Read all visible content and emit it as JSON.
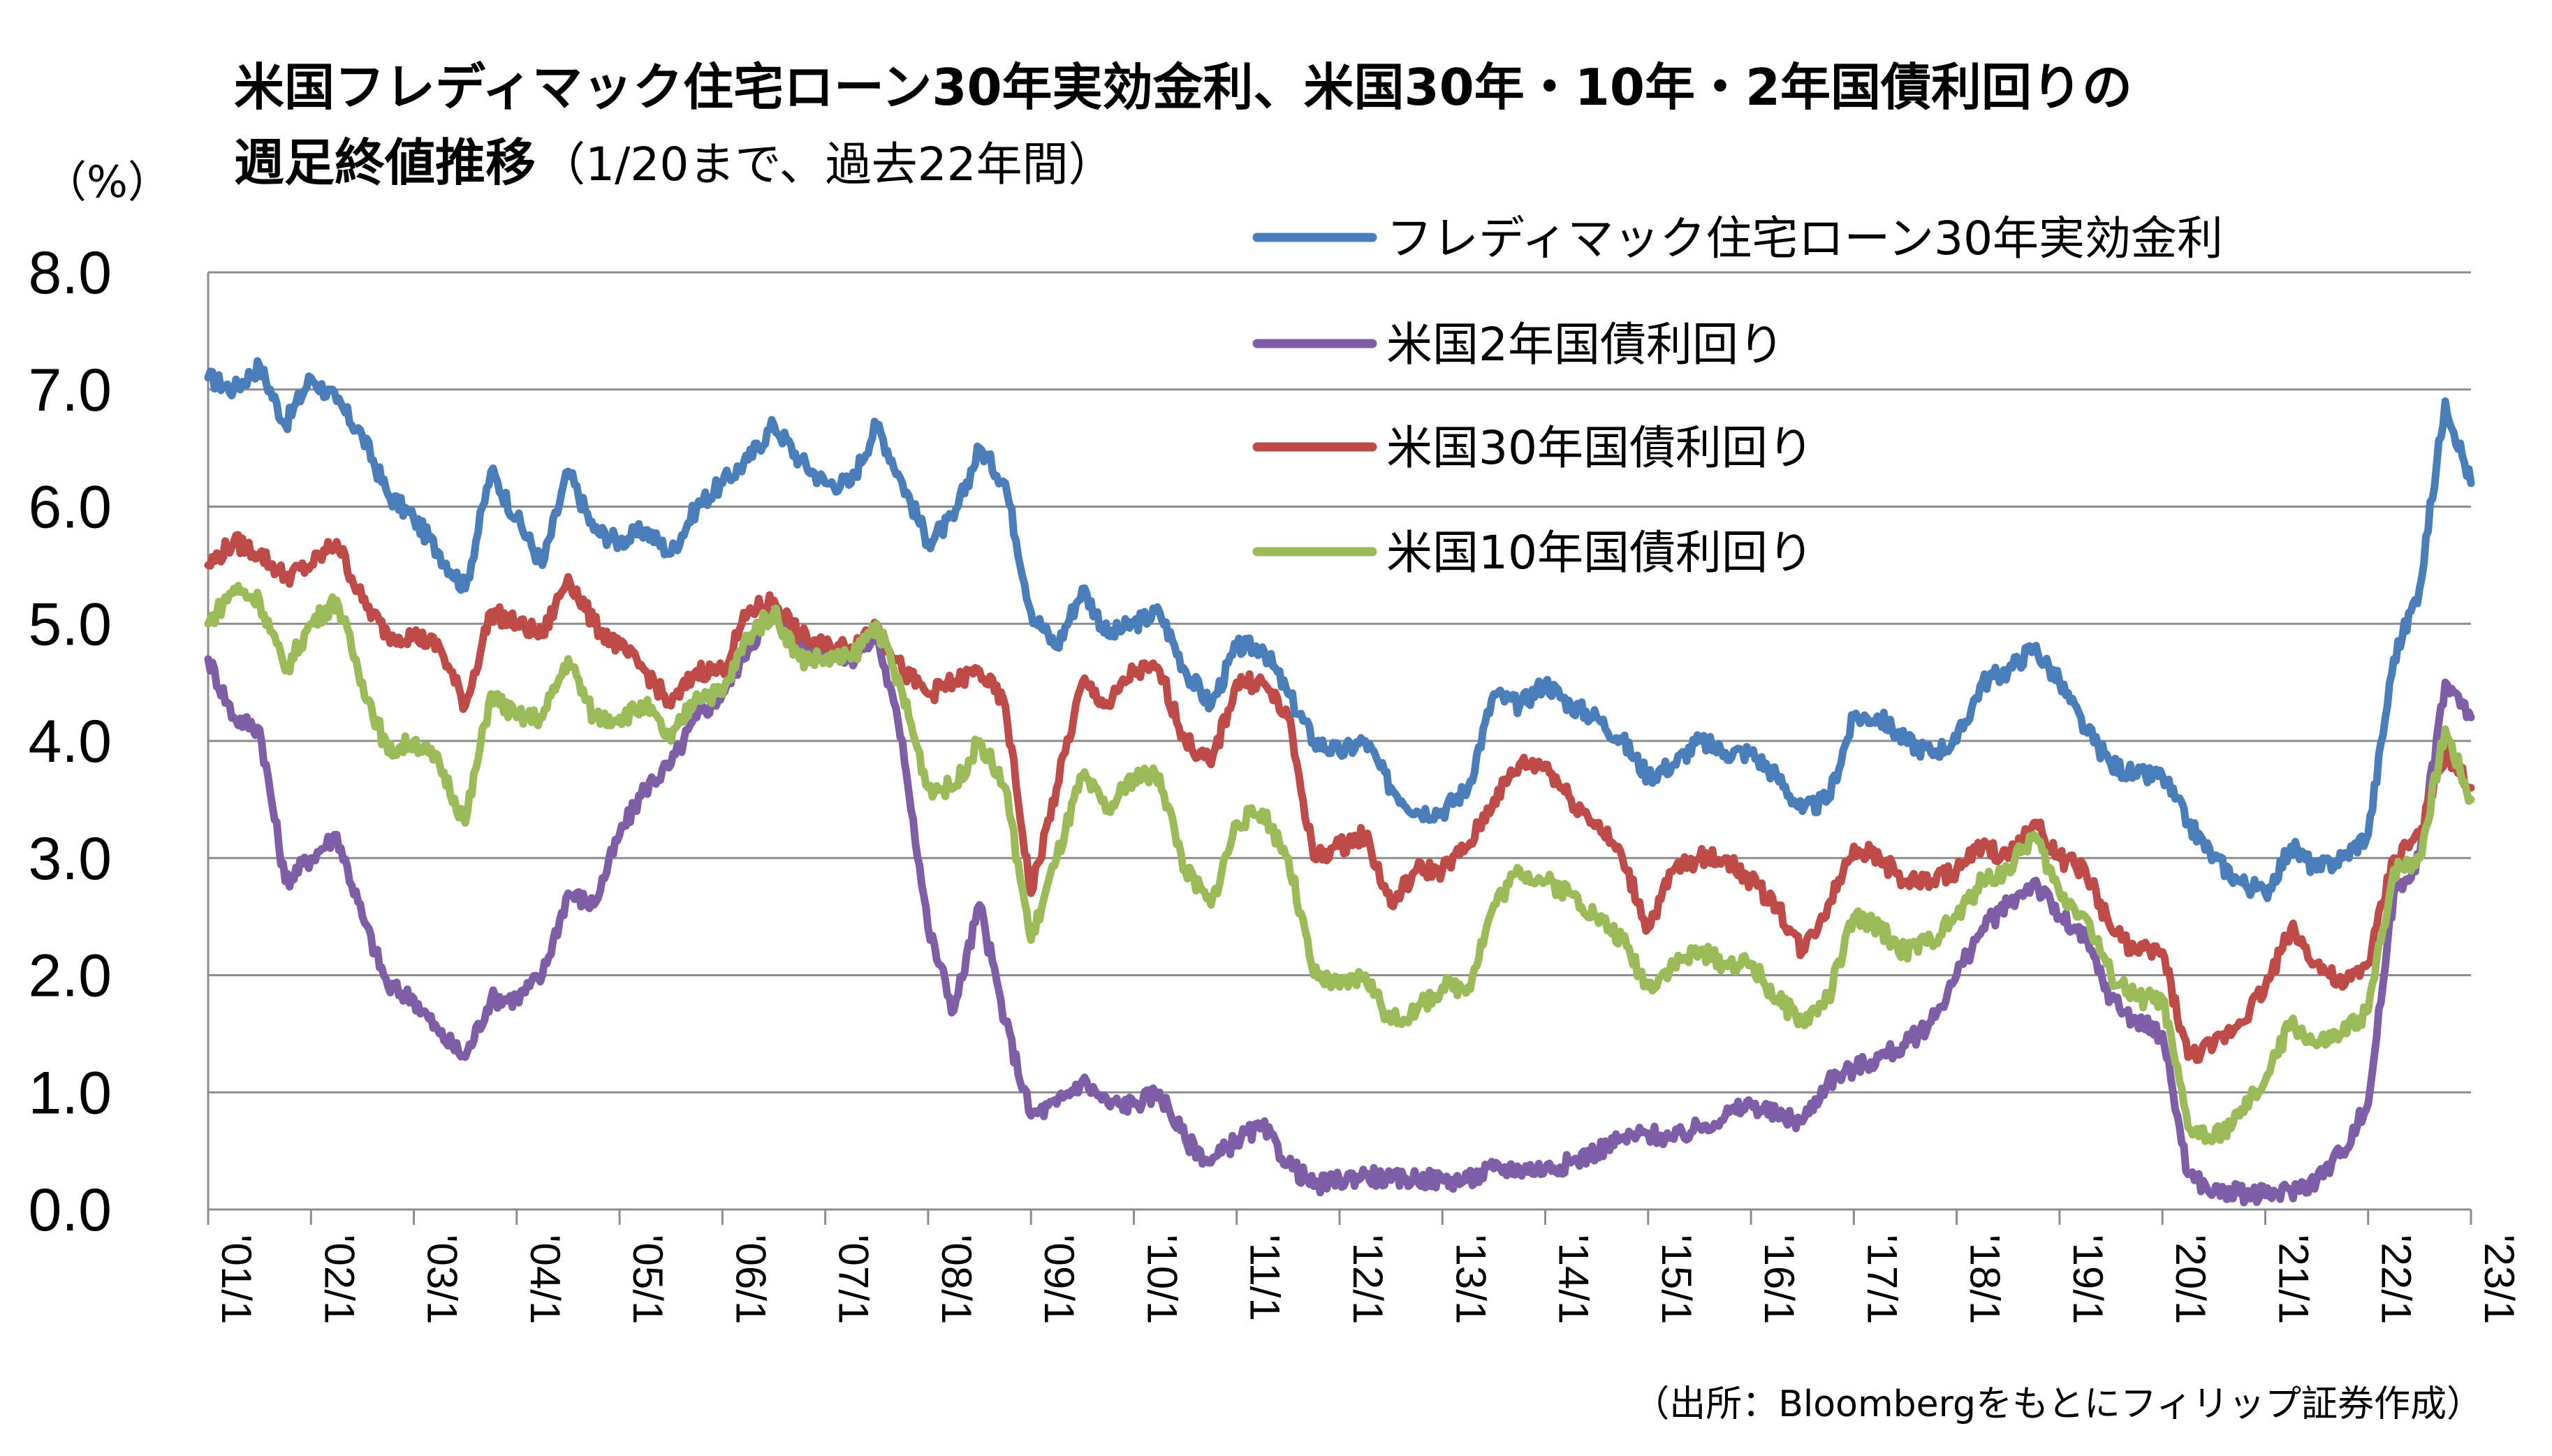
{
  "chart_data": {
    "type": "line",
    "title_line1": "米国フレディマック住宅ローン30年実効金利、米国30年・10年・2年国債利回りの",
    "title_line2_bold": "週足終値推移",
    "title_line2_normal": "（1/20まで、過去22年間）",
    "y_unit": "（%）",
    "ylim": [
      0,
      8
    ],
    "y_ticks": [
      "0.0",
      "1.0",
      "2.0",
      "3.0",
      "4.0",
      "5.0",
      "6.0",
      "7.0",
      "8.0"
    ],
    "x_ticks": [
      "'01/1",
      "'02/1",
      "'03/1",
      "'04/1",
      "'05/1",
      "'06/1",
      "'07/1",
      "'08/1",
      "'09/1",
      "'10/1",
      "'11/1",
      "'12/1",
      "'13/1",
      "'14/1",
      "'15/1",
      "'16/1",
      "'17/1",
      "'18/1",
      "'19/1",
      "'20/1",
      "'21/1",
      "'22/1",
      "'23/1"
    ],
    "x_range": [
      "2001-01",
      "2023-01"
    ],
    "grid": true,
    "legend_position": "top-right",
    "source": "（出所：Bloombergをもとにフィリップ証券作成）",
    "x": [
      2001.0,
      2001.25,
      2001.5,
      2001.75,
      2002.0,
      2002.25,
      2002.5,
      2002.75,
      2003.0,
      2003.25,
      2003.5,
      2003.75,
      2004.0,
      2004.25,
      2004.5,
      2004.75,
      2005.0,
      2005.25,
      2005.5,
      2005.75,
      2006.0,
      2006.25,
      2006.5,
      2006.75,
      2007.0,
      2007.25,
      2007.5,
      2007.75,
      2008.0,
      2008.25,
      2008.5,
      2008.75,
      2009.0,
      2009.25,
      2009.5,
      2009.75,
      2010.0,
      2010.25,
      2010.5,
      2010.75,
      2011.0,
      2011.25,
      2011.5,
      2011.75,
      2012.0,
      2012.25,
      2012.5,
      2012.75,
      2013.0,
      2013.25,
      2013.5,
      2013.75,
      2014.0,
      2014.25,
      2014.5,
      2014.75,
      2015.0,
      2015.25,
      2015.5,
      2015.75,
      2016.0,
      2016.25,
      2016.5,
      2016.75,
      2017.0,
      2017.25,
      2017.5,
      2017.75,
      2018.0,
      2018.25,
      2018.5,
      2018.75,
      2019.0,
      2019.25,
      2019.5,
      2019.75,
      2020.0,
      2020.25,
      2020.5,
      2020.75,
      2021.0,
      2021.25,
      2021.5,
      2021.75,
      2022.0,
      2022.25,
      2022.5,
      2022.75,
      2023.0
    ],
    "series": [
      {
        "name": "フレディマック住宅ローン30年実効金利",
        "color": "#4a7ebb",
        "values": [
          7.1,
          7.0,
          7.2,
          6.7,
          7.1,
          6.9,
          6.6,
          6.1,
          5.9,
          5.6,
          5.3,
          6.3,
          5.9,
          5.5,
          6.3,
          5.8,
          5.7,
          5.8,
          5.6,
          6.0,
          6.2,
          6.4,
          6.7,
          6.4,
          6.2,
          6.2,
          6.7,
          6.2,
          5.7,
          5.9,
          6.5,
          6.2,
          5.1,
          4.8,
          5.3,
          4.9,
          5.0,
          5.1,
          4.6,
          4.3,
          4.8,
          4.8,
          4.4,
          4.0,
          3.9,
          4.0,
          3.6,
          3.4,
          3.4,
          3.6,
          4.4,
          4.3,
          4.5,
          4.3,
          4.2,
          4.0,
          3.7,
          3.8,
          4.0,
          3.9,
          3.9,
          3.7,
          3.4,
          3.5,
          4.2,
          4.2,
          4.0,
          3.9,
          4.0,
          4.5,
          4.6,
          4.8,
          4.5,
          4.1,
          3.8,
          3.7,
          3.7,
          3.3,
          3.0,
          2.8,
          2.7,
          3.1,
          2.9,
          3.0,
          3.2,
          4.7,
          5.3,
          6.9,
          6.2
        ]
      },
      {
        "name": "米国2年国債利回り",
        "color": "#7f5ea8",
        "values": [
          4.7,
          4.2,
          4.1,
          2.8,
          3.0,
          3.2,
          2.5,
          1.9,
          1.8,
          1.5,
          1.3,
          1.8,
          1.8,
          2.0,
          2.7,
          2.6,
          3.2,
          3.6,
          3.8,
          4.2,
          4.4,
          4.8,
          5.1,
          4.8,
          4.8,
          4.7,
          4.9,
          4.0,
          2.4,
          1.7,
          2.6,
          1.6,
          0.8,
          0.9,
          1.1,
          0.9,
          0.9,
          1.0,
          0.6,
          0.4,
          0.6,
          0.7,
          0.4,
          0.2,
          0.25,
          0.3,
          0.25,
          0.27,
          0.25,
          0.25,
          0.35,
          0.35,
          0.35,
          0.4,
          0.5,
          0.6,
          0.65,
          0.6,
          0.7,
          0.8,
          0.9,
          0.8,
          0.75,
          1.1,
          1.2,
          1.3,
          1.4,
          1.6,
          2.0,
          2.4,
          2.6,
          2.8,
          2.5,
          2.3,
          1.8,
          1.6,
          1.5,
          0.3,
          0.15,
          0.14,
          0.12,
          0.16,
          0.25,
          0.5,
          0.9,
          2.7,
          3.0,
          4.5,
          4.2
        ]
      },
      {
        "name": "米国30年国債利回り",
        "color": "#be4b48",
        "values": [
          5.5,
          5.7,
          5.6,
          5.4,
          5.5,
          5.7,
          5.2,
          4.9,
          4.9,
          4.8,
          4.3,
          5.1,
          5.0,
          4.9,
          5.4,
          5.0,
          4.8,
          4.6,
          4.3,
          4.6,
          4.6,
          5.1,
          5.2,
          4.9,
          4.8,
          4.8,
          5.0,
          4.6,
          4.4,
          4.5,
          4.6,
          4.3,
          2.7,
          3.6,
          4.5,
          4.3,
          4.6,
          4.6,
          4.0,
          3.8,
          4.5,
          4.5,
          4.2,
          3.0,
          3.1,
          3.2,
          2.6,
          2.9,
          2.9,
          3.1,
          3.5,
          3.8,
          3.8,
          3.5,
          3.3,
          3.0,
          2.4,
          2.9,
          3.0,
          3.0,
          2.8,
          2.6,
          2.2,
          2.6,
          3.1,
          3.0,
          2.8,
          2.8,
          2.9,
          3.1,
          3.0,
          3.3,
          3.0,
          2.9,
          2.4,
          2.2,
          2.2,
          1.3,
          1.4,
          1.6,
          1.9,
          2.4,
          2.1,
          1.9,
          2.1,
          3.0,
          3.2,
          3.9,
          3.6
        ]
      },
      {
        "name": "米国10年国債利回り",
        "color": "#9bbb59",
        "values": [
          5.0,
          5.3,
          5.2,
          4.6,
          5.0,
          5.2,
          4.5,
          3.9,
          4.0,
          3.8,
          3.3,
          4.4,
          4.2,
          4.2,
          4.7,
          4.2,
          4.2,
          4.3,
          4.0,
          4.4,
          4.4,
          4.9,
          5.1,
          4.7,
          4.7,
          4.7,
          5.0,
          4.4,
          3.6,
          3.6,
          4.0,
          3.6,
          2.3,
          3.0,
          3.7,
          3.4,
          3.7,
          3.7,
          2.9,
          2.6,
          3.3,
          3.4,
          3.0,
          2.0,
          1.9,
          2.0,
          1.6,
          1.7,
          1.9,
          1.9,
          2.6,
          2.9,
          2.8,
          2.7,
          2.5,
          2.3,
          1.9,
          2.1,
          2.2,
          2.1,
          2.1,
          1.8,
          1.6,
          1.8,
          2.5,
          2.4,
          2.2,
          2.3,
          2.5,
          2.8,
          2.9,
          3.2,
          2.7,
          2.5,
          2.0,
          1.8,
          1.8,
          0.7,
          0.6,
          0.8,
          1.1,
          1.6,
          1.4,
          1.5,
          1.7,
          2.9,
          3.0,
          4.1,
          3.5
        ]
      }
    ]
  }
}
